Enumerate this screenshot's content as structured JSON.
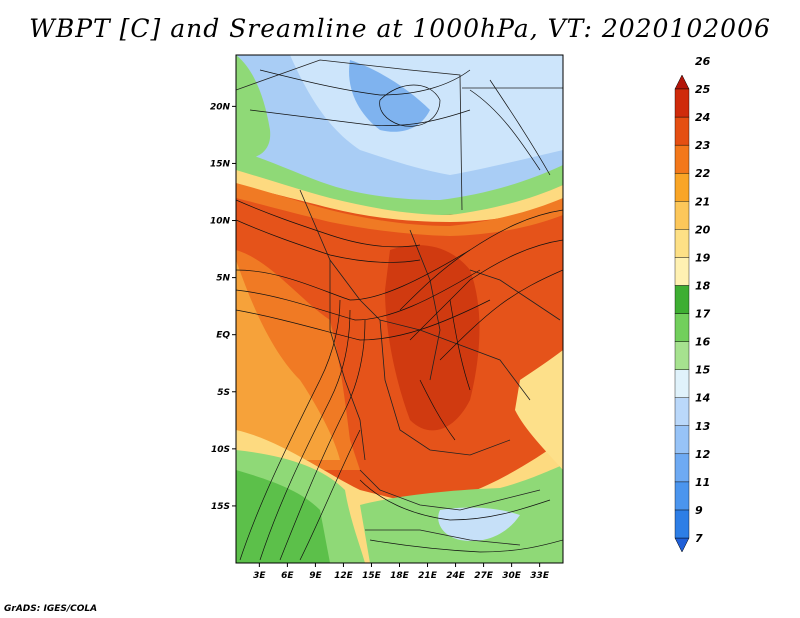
{
  "title": "WBPT [C] and Sreamline at 1000hPa, VT: 2020102006",
  "credit": "GrADS: IGES/COLA",
  "chart_data": {
    "type": "heatmap",
    "variable": "WBPT [C]",
    "overlay": "streamlines",
    "level": "1000hPa",
    "valid_time": "2020102006",
    "x_tick_labels": [
      "3E",
      "6E",
      "9E",
      "12E",
      "15E",
      "18E",
      "21E",
      "24E",
      "27E",
      "30E",
      "33E"
    ],
    "x_tick_values": [
      3,
      6,
      9,
      12,
      15,
      18,
      21,
      24,
      27,
      30,
      33
    ],
    "y_tick_labels": [
      "20N",
      "15N",
      "10N",
      "5N",
      "EQ",
      "5S",
      "10S",
      "15S"
    ],
    "y_tick_values": [
      20,
      15,
      10,
      5,
      0,
      -5,
      -10,
      -15
    ],
    "xlim": [
      0.5,
      35.5
    ],
    "ylim": [
      -20,
      24.5
    ],
    "colorbar": {
      "labels": [
        "7",
        "9",
        "11",
        "12",
        "13",
        "14",
        "15",
        "16",
        "17",
        "18",
        "19",
        "20",
        "21",
        "22",
        "23",
        "24",
        "25",
        "26"
      ],
      "colors": [
        "#1f5fd8",
        "#2d7ee6",
        "#4b95ee",
        "#6eaaf3",
        "#97c3f7",
        "#bad8fa",
        "#e0f2fb",
        "#a6e28f",
        "#72cf5c",
        "#3eae32",
        "#fff1b2",
        "#fde086",
        "#fcc75a",
        "#f9a526",
        "#f3781b",
        "#e54f12",
        "#cf2b0b",
        "#b3150a"
      ],
      "extend": "both",
      "orientation": "vertical"
    }
  }
}
